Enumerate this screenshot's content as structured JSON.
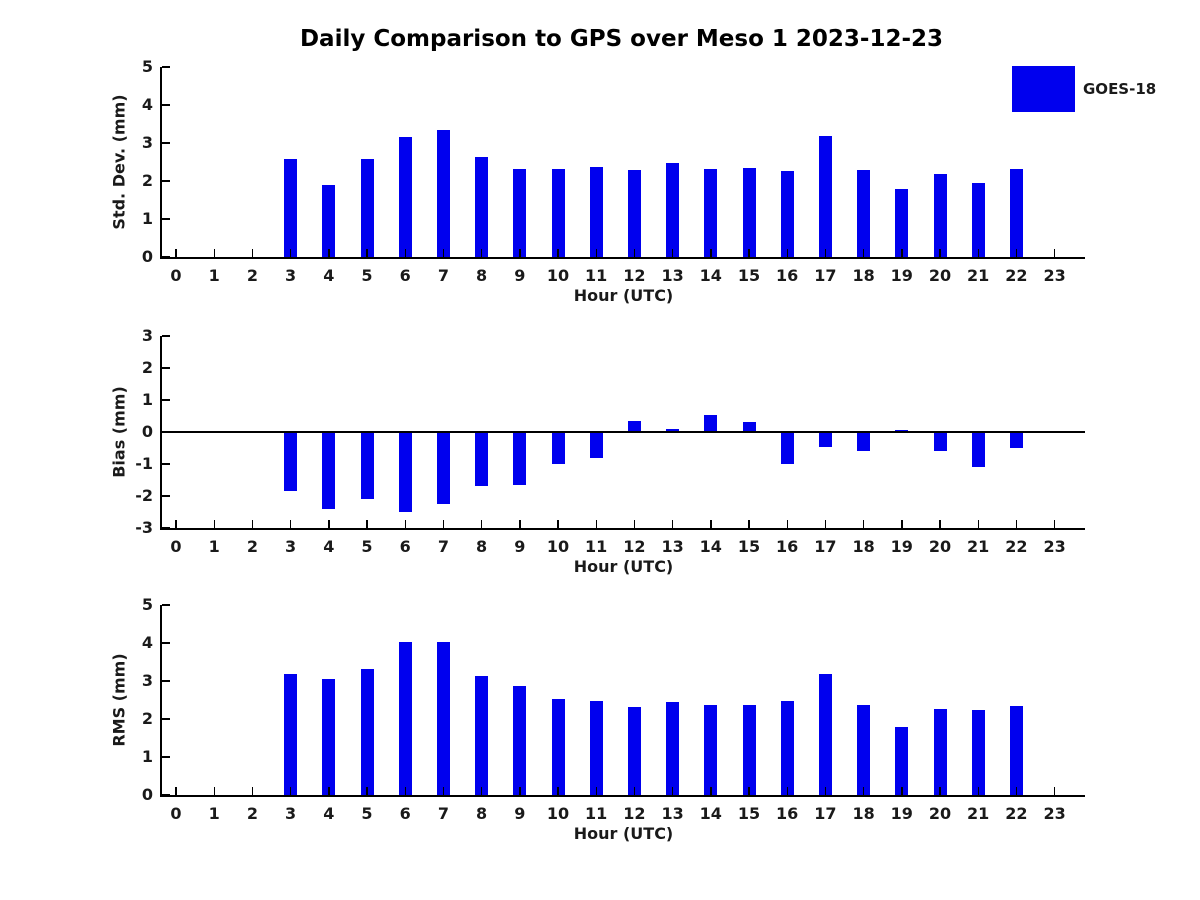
{
  "title": "Daily Comparison to GPS over Meso 1 2023-12-23",
  "legend": {
    "label": "GOES-18",
    "color": "#0000ee",
    "position": "top-right"
  },
  "colors": {
    "bar": "#0000ee",
    "axis": "#000000",
    "text": "#1a1a1a",
    "background": "#ffffff"
  },
  "chart_data": [
    {
      "type": "bar",
      "id": "std-dev",
      "series_name": "GOES-18",
      "xlabel": "Hour (UTC)",
      "ylabel": "Std. Dev. (mm)",
      "x": [
        0,
        1,
        2,
        3,
        4,
        5,
        6,
        7,
        8,
        9,
        10,
        11,
        12,
        13,
        14,
        15,
        16,
        17,
        18,
        19,
        20,
        21,
        22,
        23
      ],
      "values": [
        0,
        0,
        0,
        2.58,
        1.9,
        2.58,
        3.15,
        3.35,
        2.64,
        2.32,
        2.32,
        2.37,
        2.29,
        2.47,
        2.32,
        2.34,
        2.27,
        3.19,
        2.3,
        1.8,
        2.18,
        1.95,
        2.31,
        0
      ],
      "ylim": [
        0,
        5
      ],
      "yticks": [
        0,
        1,
        2,
        3,
        4,
        5
      ],
      "grid": false
    },
    {
      "type": "bar",
      "id": "bias",
      "series_name": "GOES-18",
      "xlabel": "Hour (UTC)",
      "ylabel": "Bias (mm)",
      "x": [
        0,
        1,
        2,
        3,
        4,
        5,
        6,
        7,
        8,
        9,
        10,
        11,
        12,
        13,
        14,
        15,
        16,
        17,
        18,
        19,
        20,
        21,
        22,
        23
      ],
      "values": [
        0,
        0,
        0,
        -1.85,
        -2.4,
        -2.1,
        -2.5,
        -2.25,
        -1.7,
        -1.65,
        -1.0,
        -0.8,
        0.33,
        0.1,
        0.52,
        0.3,
        -1.0,
        -0.46,
        -0.6,
        0.05,
        -0.58,
        -1.1,
        -0.5,
        0
      ],
      "ylim": [
        -3,
        3
      ],
      "yticks": [
        3,
        2,
        1,
        0,
        -1,
        -2,
        -3
      ],
      "zero_line": true,
      "grid": false
    },
    {
      "type": "bar",
      "id": "rms",
      "series_name": "GOES-18",
      "xlabel": "Hour (UTC)",
      "ylabel": "RMS (mm)",
      "x": [
        0,
        1,
        2,
        3,
        4,
        5,
        6,
        7,
        8,
        9,
        10,
        11,
        12,
        13,
        14,
        15,
        16,
        17,
        18,
        19,
        20,
        21,
        22,
        23
      ],
      "values": [
        0,
        0,
        0,
        3.18,
        3.06,
        3.32,
        4.03,
        4.03,
        3.12,
        2.86,
        2.53,
        2.48,
        2.31,
        2.46,
        2.38,
        2.38,
        2.47,
        3.19,
        2.38,
        1.8,
        2.27,
        2.23,
        2.34,
        0
      ],
      "ylim": [
        0,
        5
      ],
      "yticks": [
        0,
        1,
        2,
        3,
        4,
        5
      ],
      "grid": false
    }
  ]
}
